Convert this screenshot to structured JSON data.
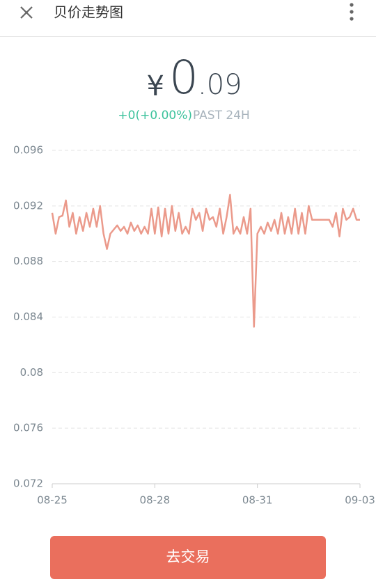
{
  "header": {
    "title": "贝价走势图"
  },
  "price": {
    "currency": "¥",
    "integer": "0",
    "decimal": ".09",
    "change": "+0(+0.00%)",
    "period": "PAST 24H"
  },
  "button": {
    "label": "去交易"
  },
  "chart_data": {
    "type": "line",
    "x": [
      0,
      0.1,
      0.2,
      0.3,
      0.4,
      0.5,
      0.6,
      0.7,
      0.8,
      0.9,
      1,
      1.1,
      1.2,
      1.3,
      1.4,
      1.5,
      1.6,
      1.7,
      1.8,
      1.9,
      2,
      2.1,
      2.2,
      2.3,
      2.4,
      2.5,
      2.6,
      2.7,
      2.8,
      2.9,
      3,
      3.1,
      3.2,
      3.3,
      3.4,
      3.5,
      3.6,
      3.7,
      3.8,
      3.9,
      4,
      4.1,
      4.2,
      4.3,
      4.4,
      4.5,
      4.6,
      4.7,
      4.8,
      4.9,
      5,
      5.1,
      5.2,
      5.3,
      5.4,
      5.5,
      5.6,
      5.7,
      5.8,
      5.9,
      6,
      6.1,
      6.2,
      6.3,
      6.4,
      6.5,
      6.6,
      6.7,
      6.8,
      6.9,
      7,
      7.1,
      7.2,
      7.3,
      7.4,
      7.5,
      7.6,
      7.7,
      7.8,
      7.9,
      8,
      8.1,
      8.2,
      8.3,
      8.4,
      8.5,
      8.6,
      8.7,
      8.8,
      8.9,
      9
    ],
    "series": [
      {
        "color": "#eb9a8b",
        "values": [
          0.0915,
          0.09,
          0.0912,
          0.0913,
          0.0924,
          0.0905,
          0.0915,
          0.09,
          0.0912,
          0.0902,
          0.0915,
          0.0905,
          0.0918,
          0.0905,
          0.092,
          0.09,
          0.0889,
          0.09,
          0.0903,
          0.0906,
          0.0902,
          0.0905,
          0.09,
          0.0908,
          0.0902,
          0.0906,
          0.09,
          0.0905,
          0.09,
          0.0918,
          0.09,
          0.0919,
          0.0898,
          0.0918,
          0.09,
          0.092,
          0.0902,
          0.0915,
          0.09,
          0.0905,
          0.09,
          0.0918,
          0.091,
          0.0915,
          0.0902,
          0.0918,
          0.091,
          0.0912,
          0.0905,
          0.0918,
          0.09,
          0.0912,
          0.0928,
          0.09,
          0.0905,
          0.09,
          0.0912,
          0.09,
          0.0918,
          0.0833,
          0.09,
          0.0905,
          0.09,
          0.0908,
          0.0902,
          0.091,
          0.09,
          0.0915,
          0.09,
          0.0912,
          0.09,
          0.0918,
          0.09,
          0.0915,
          0.09,
          0.092,
          0.091,
          0.091,
          0.091,
          0.091,
          0.091,
          0.091,
          0.0905,
          0.0915,
          0.0898,
          0.0918,
          0.091,
          0.0912,
          0.0918,
          0.091,
          0.091
        ]
      }
    ],
    "xlim": [
      0,
      9
    ],
    "xticks": [
      {
        "value": 0,
        "label": "08-25"
      },
      {
        "value": 3,
        "label": "08-28"
      },
      {
        "value": 6,
        "label": "08-31"
      },
      {
        "value": 9,
        "label": "09-03"
      }
    ],
    "ylim": [
      0.072,
      0.096
    ],
    "yticks": [
      0.072,
      0.076,
      0.08,
      0.084,
      0.088,
      0.092,
      0.096
    ],
    "grid": true
  }
}
